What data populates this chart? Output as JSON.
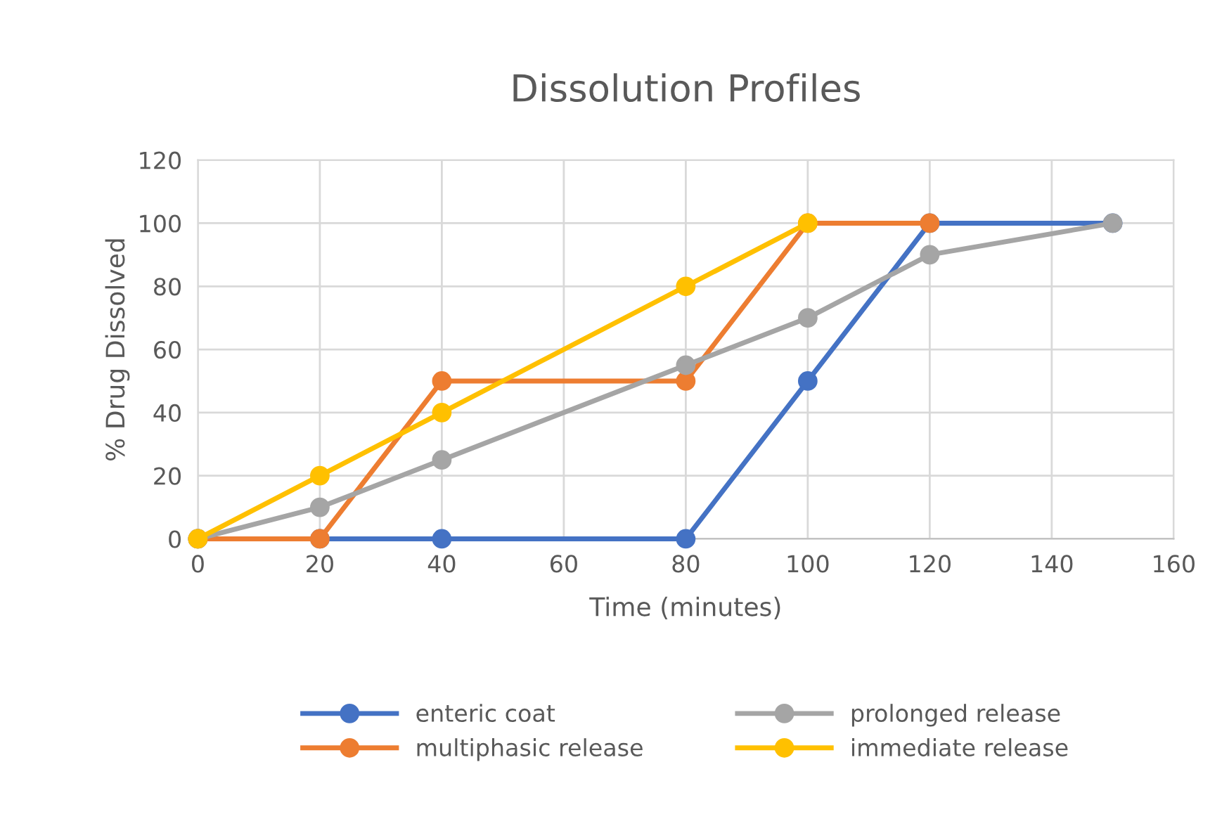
{
  "chart_data": {
    "type": "line",
    "title": "Dissolution Profiles",
    "xlabel": "Time (minutes)",
    "ylabel": "% Drug Dissolved",
    "xlim": [
      0,
      160
    ],
    "xticks": [
      0,
      20,
      40,
      60,
      80,
      100,
      120,
      140,
      160
    ],
    "ylim": [
      0,
      120
    ],
    "yticks": [
      0,
      20,
      40,
      60,
      80,
      100,
      120
    ],
    "grid": true,
    "legend": "bottom",
    "marker": "circle",
    "line_style": "solid",
    "series": [
      {
        "name": "enteric coat",
        "color": "#4472c4",
        "x": [
          0,
          20,
          40,
          80,
          100,
          120,
          150
        ],
        "values": [
          0,
          0,
          0,
          0,
          50,
          100,
          100
        ]
      },
      {
        "name": "multiphasic release",
        "color": "#ed7d31",
        "x": [
          0,
          20,
          40,
          80,
          100,
          120
        ],
        "values": [
          0,
          0,
          50,
          50,
          100,
          100
        ]
      },
      {
        "name": "prolonged release",
        "color": "#a5a5a5",
        "x": [
          0,
          20,
          40,
          80,
          100,
          120,
          150
        ],
        "values": [
          0,
          10,
          25,
          55,
          70,
          90,
          100
        ]
      },
      {
        "name": "immediate release",
        "color": "#ffc000",
        "x": [
          0,
          20,
          40,
          80,
          100
        ],
        "values": [
          0,
          20,
          40,
          80,
          100
        ]
      }
    ]
  }
}
